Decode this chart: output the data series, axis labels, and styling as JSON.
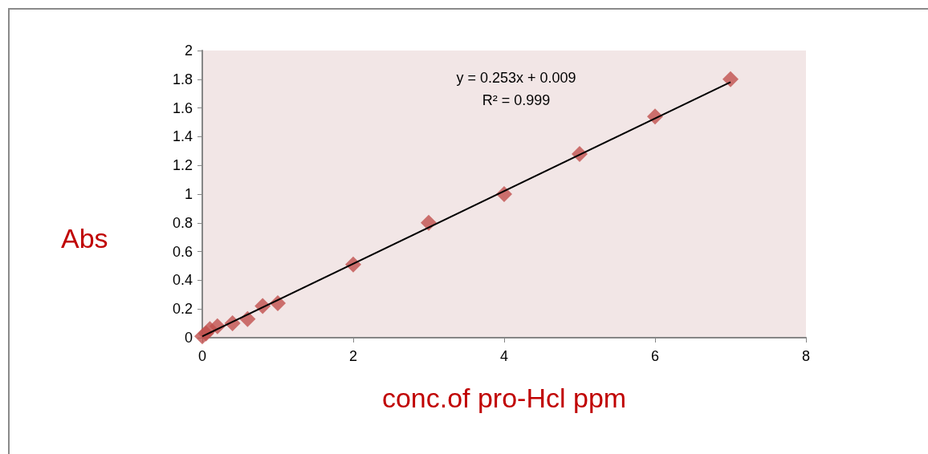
{
  "chart_data": {
    "type": "scatter",
    "xlabel": "conc.of pro-Hcl ppm",
    "ylabel": "Abs",
    "annotations": [
      "y = 0.253x + 0.009",
      "R² = 0.999"
    ],
    "series": [
      {
        "color": "#c0504d",
        "marker": "diamond",
        "x": [
          0,
          0.05,
          0.1,
          0.2,
          0.4,
          0.6,
          0.8,
          1,
          2,
          3,
          4,
          5,
          6,
          7
        ],
        "values": [
          0.01,
          0.03,
          0.06,
          0.08,
          0.1,
          0.13,
          0.22,
          0.24,
          0.51,
          0.8,
          1.0,
          1.28,
          1.54,
          1.8
        ]
      },
      {
        "type": "line",
        "color": "#000000",
        "marker": "none",
        "x": [
          0,
          7
        ],
        "values": [
          0.009,
          1.78
        ]
      }
    ],
    "xlim": [
      0,
      8
    ],
    "xticks": [
      0,
      2,
      4,
      6,
      8
    ],
    "ylim": [
      0,
      2
    ],
    "yticks": [
      0,
      0.2,
      0.4,
      0.6,
      0.8,
      1,
      1.2,
      1.4,
      1.6,
      1.8,
      2
    ],
    "grid": false
  }
}
